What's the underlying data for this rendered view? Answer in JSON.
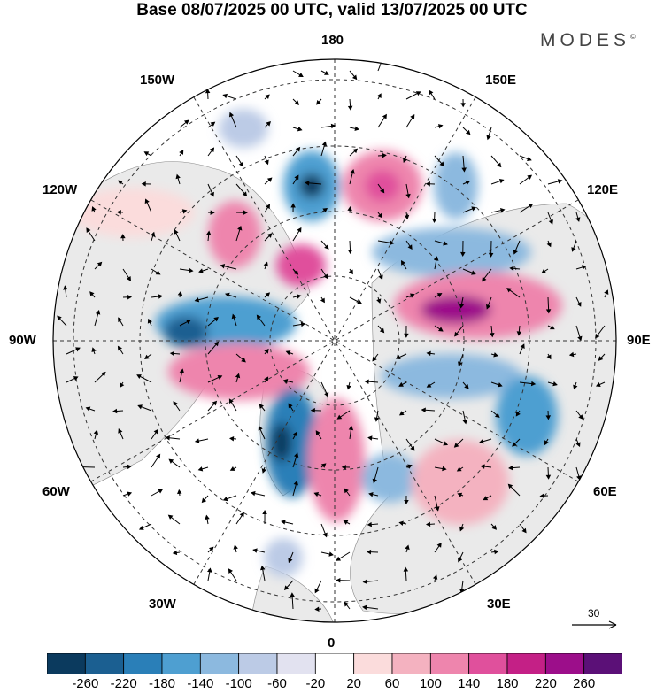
{
  "title": "Base 08/07/2025 00 UTC, valid 13/07/2025 00 UTC",
  "brand": {
    "name": "MODES",
    "mark": "©"
  },
  "longitude_labels": {
    "top": "180",
    "bottom": "0",
    "left": "90W",
    "right": "90E",
    "upper_left_1": "150W",
    "upper_left_2": "120W",
    "upper_right_1": "150E",
    "upper_right_2": "120E",
    "lower_left_1": "60W",
    "lower_left_2": "30W",
    "lower_right_1": "60E",
    "lower_right_2": "30E"
  },
  "reference_vector": {
    "value": "30"
  },
  "colorbar": {
    "colors": [
      "#0b3a5e",
      "#1b5f91",
      "#2a7fb8",
      "#4e9fd1",
      "#8cb9df",
      "#bccbe6",
      "#e2e2f0",
      "#ffffff",
      "#fbdcdc",
      "#f4b2c0",
      "#ee85ad",
      "#e0509c",
      "#c42086",
      "#9c0e8a",
      "#5b1077"
    ],
    "labels": [
      "-260",
      "-220",
      "-180",
      "-140",
      "-100",
      "-60",
      "-20",
      "20",
      "60",
      "100",
      "140",
      "180",
      "220",
      "260"
    ]
  },
  "colors": {
    "land": "#eaeaea",
    "ocean": "#ffffff",
    "grid": "#333333"
  }
}
